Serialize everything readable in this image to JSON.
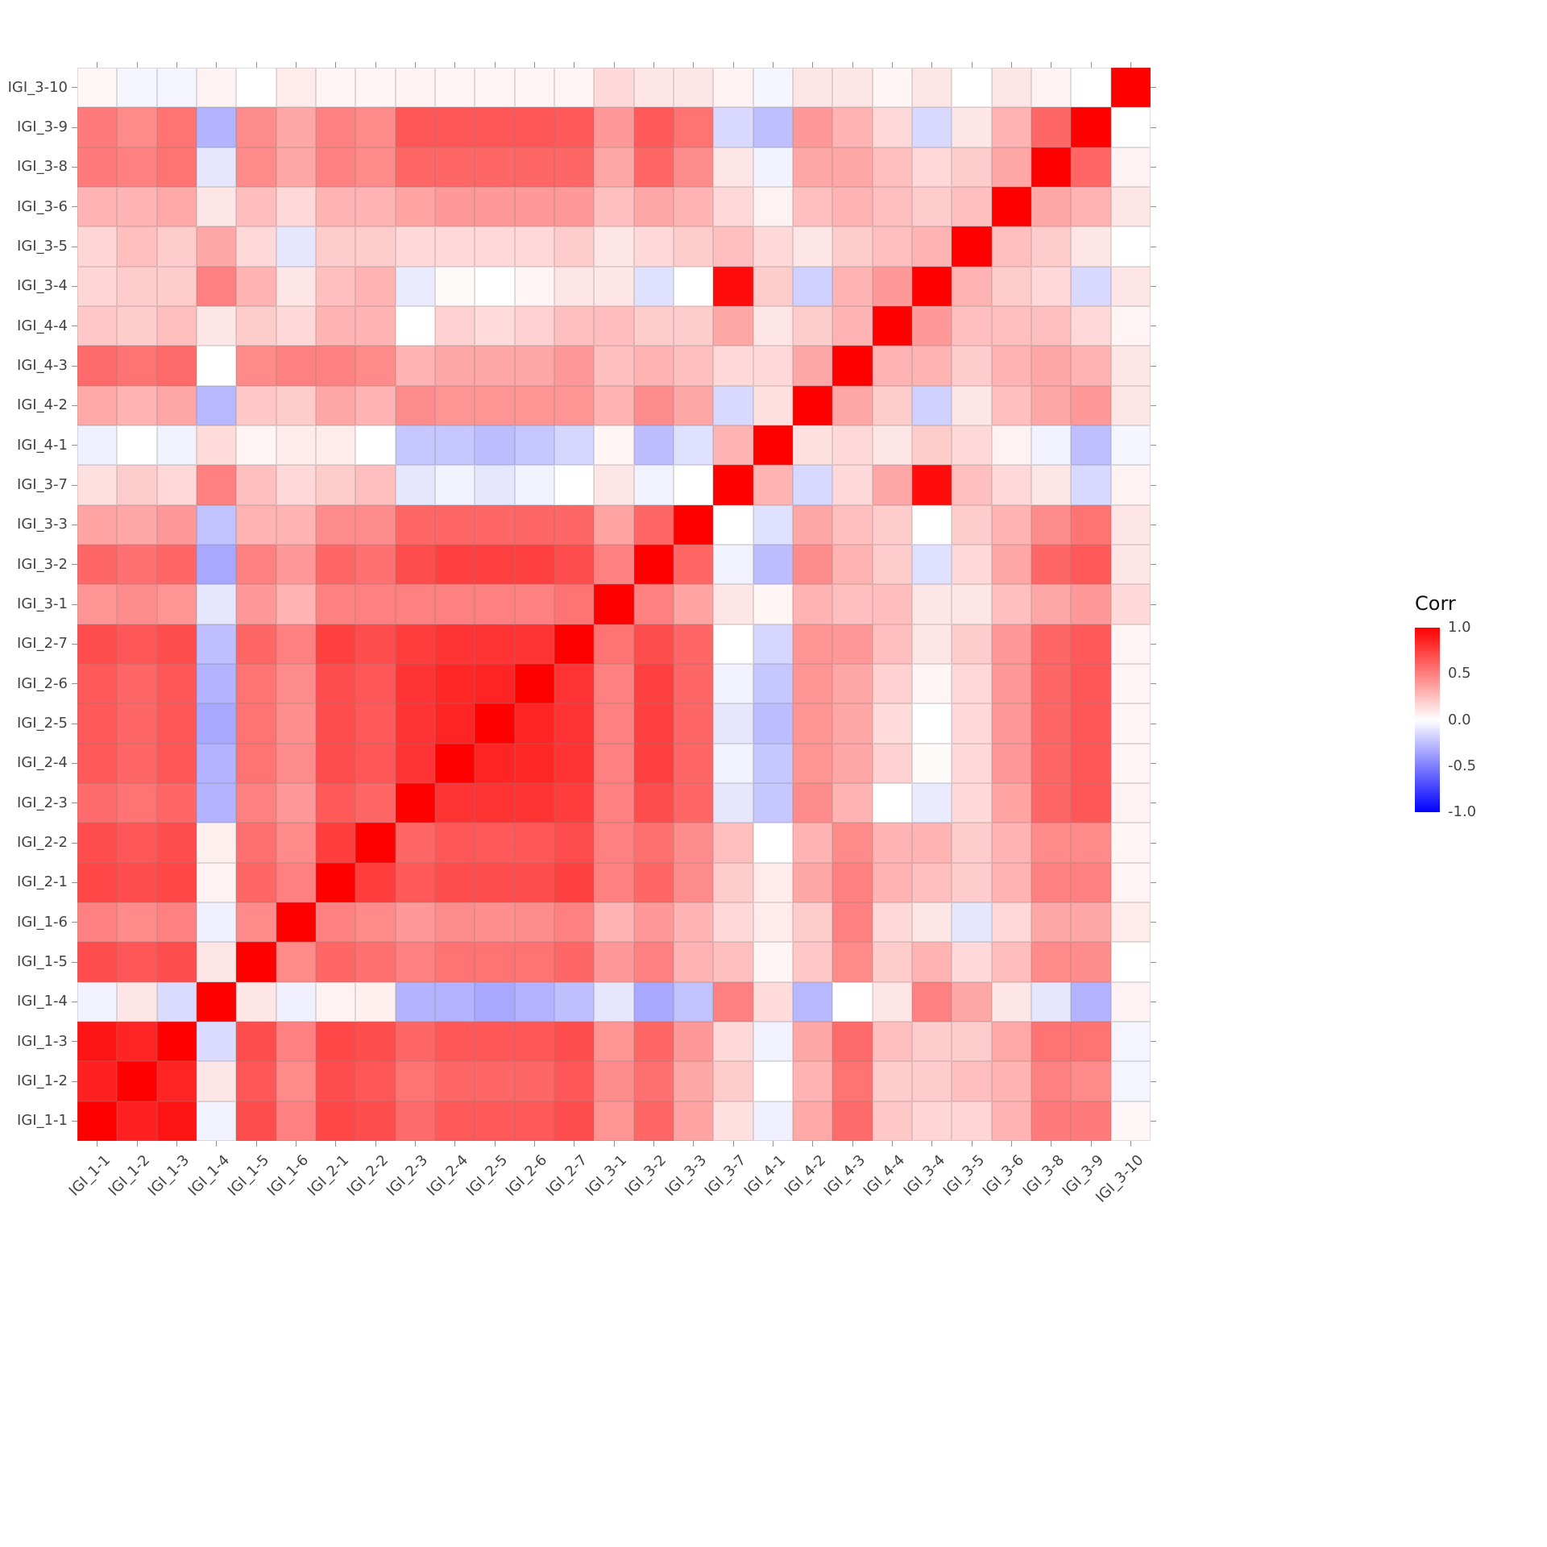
{
  "figure": {
    "background_color": "#FFFFFF",
    "panel_grid_color": "#9A9A9A"
  },
  "chart_data": {
    "type": "heatmap",
    "subtype": "correlation-matrix",
    "title": "",
    "legend": {
      "title": "Corr",
      "tick_labels": [
        "1.0",
        "0.5",
        "0.0",
        "-0.5",
        "-1.0"
      ],
      "position": "right"
    },
    "scale": {
      "min": -1.0,
      "max": 1.0,
      "low_color": "#0000FF",
      "mid_color": "#FFFFFF",
      "high_color": "#FF0000"
    },
    "x_order": "left-to-right",
    "y_order": "bottom-to-top",
    "labels": [
      "IGI_1-1",
      "IGI_1-2",
      "IGI_1-3",
      "IGI_1-4",
      "IGI_1-5",
      "IGI_1-6",
      "IGI_2-1",
      "IGI_2-2",
      "IGI_2-3",
      "IGI_2-4",
      "IGI_2-5",
      "IGI_2-6",
      "IGI_2-7",
      "IGI_3-1",
      "IGI_3-2",
      "IGI_3-3",
      "IGI_3-7",
      "IGI_4-1",
      "IGI_4-2",
      "IGI_4-3",
      "IGI_4-4",
      "IGI_3-4",
      "IGI_3-5",
      "IGI_3-6",
      "IGI_3-8",
      "IGI_3-9",
      "IGI_3-10"
    ],
    "matrix_encoding": "matrix_lower[i][j] = corr(labels[i], labels[j]) for j<=i; matrix is symmetric; values estimated from cell colors",
    "matrix_lower": [
      [
        1
      ],
      [
        0.87,
        1
      ],
      [
        0.92,
        0.86,
        1
      ],
      [
        -0.05,
        0.1,
        -0.14,
        1
      ],
      [
        0.7,
        0.66,
        0.7,
        0.1,
        1
      ],
      [
        0.5,
        0.46,
        0.5,
        -0.06,
        0.46,
        1
      ],
      [
        0.72,
        0.7,
        0.72,
        0.05,
        0.6,
        0.5,
        1
      ],
      [
        0.7,
        0.66,
        0.7,
        0.06,
        0.56,
        0.46,
        0.76,
        1
      ],
      [
        0.58,
        0.55,
        0.6,
        -0.3,
        0.5,
        0.4,
        0.65,
        0.6,
        1
      ],
      [
        0.65,
        0.6,
        0.66,
        -0.3,
        0.55,
        0.45,
        0.7,
        0.66,
        0.8,
        1
      ],
      [
        0.65,
        0.6,
        0.66,
        -0.34,
        0.55,
        0.44,
        0.7,
        0.65,
        0.8,
        0.86,
        1
      ],
      [
        0.65,
        0.6,
        0.66,
        -0.3,
        0.55,
        0.45,
        0.7,
        0.66,
        0.8,
        0.85,
        0.86,
        1
      ],
      [
        0.7,
        0.66,
        0.7,
        -0.25,
        0.6,
        0.5,
        0.75,
        0.7,
        0.76,
        0.8,
        0.8,
        0.8,
        1
      ],
      [
        0.42,
        0.45,
        0.42,
        -0.1,
        0.4,
        0.3,
        0.5,
        0.5,
        0.5,
        0.5,
        0.5,
        0.5,
        0.55,
        1
      ],
      [
        0.6,
        0.56,
        0.6,
        -0.34,
        0.5,
        0.4,
        0.6,
        0.56,
        0.7,
        0.75,
        0.75,
        0.75,
        0.7,
        0.5,
        1
      ],
      [
        0.36,
        0.35,
        0.4,
        -0.24,
        0.3,
        0.3,
        0.45,
        0.45,
        0.6,
        0.6,
        0.6,
        0.6,
        0.6,
        0.36,
        0.6,
        1
      ],
      [
        0.12,
        0.2,
        0.15,
        0.5,
        0.25,
        0.15,
        0.2,
        0.25,
        -0.1,
        -0.05,
        -0.1,
        -0.05,
        0,
        0.1,
        -0.05,
        0,
        1
      ],
      [
        -0.06,
        0,
        -0.05,
        0.14,
        0.04,
        0.08,
        0.08,
        0,
        -0.22,
        -0.22,
        -0.26,
        -0.22,
        -0.16,
        0.04,
        -0.26,
        -0.12,
        0.3,
        1
      ],
      [
        0.34,
        0.3,
        0.35,
        -0.28,
        0.22,
        0.2,
        0.35,
        0.3,
        0.45,
        0.42,
        0.42,
        0.42,
        0.42,
        0.3,
        0.45,
        0.35,
        -0.15,
        0.12,
        1
      ],
      [
        0.58,
        0.55,
        0.58,
        0,
        0.46,
        0.5,
        0.5,
        0.46,
        0.3,
        0.35,
        0.35,
        0.35,
        0.4,
        0.25,
        0.3,
        0.25,
        0.15,
        0.15,
        0.35,
        1
      ],
      [
        0.22,
        0.2,
        0.25,
        0.1,
        0.2,
        0.15,
        0.3,
        0.3,
        0,
        0.18,
        0.14,
        0.18,
        0.25,
        0.26,
        0.2,
        0.2,
        0.35,
        0.1,
        0.2,
        0.3,
        1
      ],
      [
        0.16,
        0.2,
        0.2,
        0.5,
        0.3,
        0.1,
        0.25,
        0.3,
        -0.08,
        0.02,
        0,
        0.04,
        0.1,
        0.1,
        -0.12,
        0,
        0.95,
        0.2,
        -0.18,
        0.3,
        0.4,
        1
      ],
      [
        0.16,
        0.25,
        0.2,
        0.35,
        0.15,
        -0.1,
        0.2,
        0.2,
        0.15,
        0.15,
        0.15,
        0.15,
        0.2,
        0.1,
        0.15,
        0.2,
        0.25,
        0.15,
        0.1,
        0.2,
        0.25,
        0.3,
        1
      ],
      [
        0.3,
        0.3,
        0.34,
        0.1,
        0.26,
        0.15,
        0.3,
        0.3,
        0.36,
        0.4,
        0.4,
        0.4,
        0.4,
        0.25,
        0.35,
        0.3,
        0.15,
        0.05,
        0.25,
        0.3,
        0.25,
        0.2,
        0.25,
        1
      ],
      [
        0.52,
        0.5,
        0.55,
        -0.1,
        0.46,
        0.35,
        0.5,
        0.46,
        0.6,
        0.6,
        0.6,
        0.6,
        0.6,
        0.35,
        0.6,
        0.45,
        0.1,
        -0.05,
        0.35,
        0.35,
        0.25,
        0.15,
        0.2,
        0.35,
        1
      ],
      [
        0.52,
        0.46,
        0.55,
        -0.3,
        0.45,
        0.35,
        0.5,
        0.46,
        0.66,
        0.66,
        0.66,
        0.66,
        0.65,
        0.4,
        0.65,
        0.55,
        -0.15,
        -0.25,
        0.4,
        0.3,
        0.15,
        -0.15,
        0.1,
        0.3,
        0.6,
        1
      ],
      [
        0.03,
        -0.04,
        -0.04,
        0.05,
        0,
        0.08,
        0.04,
        0.04,
        0.05,
        0.04,
        0.04,
        0.04,
        0.04,
        0.15,
        0.1,
        0.1,
        0.05,
        -0.04,
        0.1,
        0.1,
        0.04,
        0.1,
        0,
        0.1,
        0.05,
        0,
        1
      ]
    ]
  }
}
